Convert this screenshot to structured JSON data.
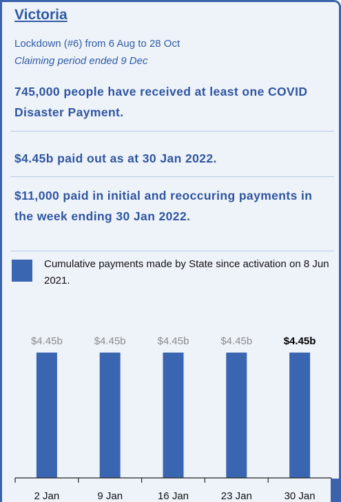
{
  "panel": {
    "title": "Victoria",
    "lockdown_text": "Lockdown (#6) from 6 Aug to 28 Oct",
    "claiming_text": "Claiming period ended 9 Dec",
    "stat_people": "745,000 people have received at least one COVID Disaster Payment.",
    "stat_paid": "$4.45b paid out as at 30 Jan 2022.",
    "stat_week": "$11,000 paid in initial and reoccuring payments in the week ending 30 Jan 2022.",
    "legend_text": "Cumulative payments made by State since activation on 8 Jun 2021."
  },
  "colors": {
    "bar": "#3a65b0",
    "label_muted": "#8a8a8a",
    "label_emph": "#000000",
    "border": "#3b62ad"
  },
  "chart_data": {
    "type": "bar",
    "categories": [
      "2 Jan",
      "9 Jan",
      "16 Jan",
      "23 Jan",
      "30 Jan"
    ],
    "values": [
      4.45,
      4.45,
      4.45,
      4.45,
      4.45
    ],
    "data_labels": [
      "$4.45b",
      "$4.45b",
      "$4.45b",
      "$4.45b",
      "$4.45b"
    ],
    "emphasized_index": 4,
    "ylim": [
      0,
      4.45
    ],
    "grid": false
  }
}
